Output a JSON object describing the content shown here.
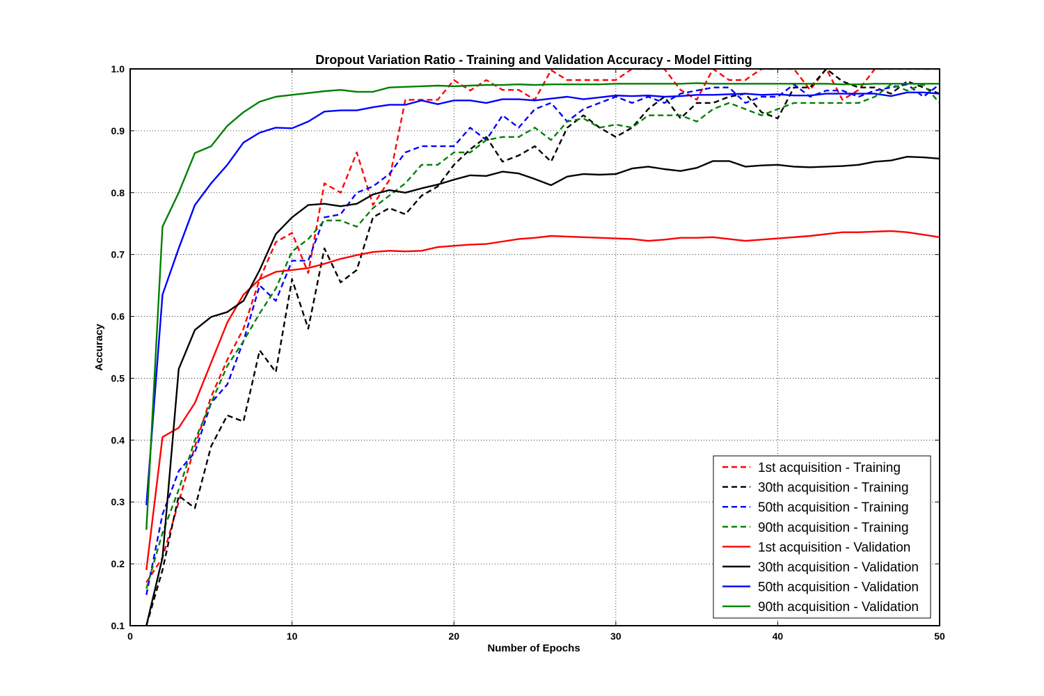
{
  "chart_data": {
    "type": "line",
    "title": "Dropout Variation Ratio - Training and Validation Accuracy - Model Fitting",
    "xlabel": "Number of Epochs",
    "ylabel": "Accuracy",
    "xlim": [
      0,
      50
    ],
    "ylim": [
      0.1,
      1.0
    ],
    "xticks": [
      0,
      10,
      20,
      30,
      40,
      50
    ],
    "xtick_labels": [
      "0",
      "10",
      "20",
      "30",
      "40",
      "50"
    ],
    "yticks": [
      0.1,
      0.2,
      0.3,
      0.4,
      0.5,
      0.6,
      0.7,
      0.8,
      0.9,
      1.0
    ],
    "ytick_labels": [
      "0.1",
      "0.2",
      "0.3",
      "0.4",
      "0.5",
      "0.6",
      "0.7",
      "0.8",
      "0.9",
      "1.0"
    ],
    "grid": true,
    "legend_position": "lower-right",
    "x": [
      1,
      2,
      3,
      4,
      5,
      6,
      7,
      8,
      9,
      10,
      11,
      12,
      13,
      14,
      15,
      16,
      17,
      18,
      19,
      20,
      21,
      22,
      23,
      24,
      25,
      26,
      27,
      28,
      29,
      30,
      31,
      32,
      33,
      34,
      35,
      36,
      37,
      38,
      39,
      40,
      41,
      42,
      43,
      44,
      45,
      46,
      47,
      48,
      49,
      50
    ],
    "series": [
      {
        "name": "1st acquisition - Training",
        "color": "#ff0000",
        "style": "dashed",
        "values": [
          0.17,
          0.21,
          0.3,
          0.39,
          0.47,
          0.53,
          0.58,
          0.66,
          0.72,
          0.735,
          0.67,
          0.815,
          0.8,
          0.865,
          0.78,
          0.82,
          0.95,
          0.95,
          0.95,
          0.982,
          0.965,
          0.982,
          0.966,
          0.966,
          0.95,
          0.998,
          0.982,
          0.982,
          0.982,
          0.982,
          1.0,
          1.0,
          1.0,
          0.966,
          0.95,
          1.0,
          0.982,
          0.982,
          1.0,
          1.0,
          1.0,
          0.966,
          1.0,
          0.95,
          0.966,
          1.0,
          1.0,
          1.0,
          1.0,
          1.0
        ]
      },
      {
        "name": "30th acquisition - Training",
        "color": "#000000",
        "style": "dashed",
        "values": [
          0.1,
          0.19,
          0.31,
          0.29,
          0.39,
          0.44,
          0.43,
          0.545,
          0.51,
          0.66,
          0.58,
          0.71,
          0.655,
          0.675,
          0.76,
          0.775,
          0.765,
          0.795,
          0.81,
          0.845,
          0.87,
          0.89,
          0.85,
          0.86,
          0.875,
          0.85,
          0.905,
          0.925,
          0.905,
          0.89,
          0.905,
          0.935,
          0.955,
          0.92,
          0.945,
          0.945,
          0.955,
          0.96,
          0.93,
          0.92,
          0.97,
          0.97,
          1.0,
          0.98,
          0.97,
          0.97,
          0.96,
          0.98,
          0.97,
          0.96
        ]
      },
      {
        "name": "50th acquisition - Training",
        "color": "#0000ff",
        "style": "dashed",
        "values": [
          0.15,
          0.28,
          0.35,
          0.38,
          0.46,
          0.49,
          0.56,
          0.65,
          0.625,
          0.69,
          0.69,
          0.76,
          0.765,
          0.8,
          0.81,
          0.83,
          0.865,
          0.875,
          0.875,
          0.875,
          0.905,
          0.885,
          0.925,
          0.905,
          0.935,
          0.945,
          0.915,
          0.935,
          0.945,
          0.955,
          0.945,
          0.955,
          0.945,
          0.96,
          0.965,
          0.97,
          0.97,
          0.945,
          0.955,
          0.955,
          0.975,
          0.955,
          0.965,
          0.965,
          0.955,
          0.965,
          0.97,
          0.975,
          0.955,
          0.975
        ]
      },
      {
        "name": "90th acquisition - Training",
        "color": "#008000",
        "style": "dashed",
        "values": [
          0.16,
          0.25,
          0.32,
          0.4,
          0.46,
          0.52,
          0.56,
          0.605,
          0.645,
          0.705,
          0.725,
          0.755,
          0.755,
          0.745,
          0.775,
          0.795,
          0.815,
          0.845,
          0.845,
          0.865,
          0.865,
          0.885,
          0.89,
          0.89,
          0.905,
          0.885,
          0.915,
          0.92,
          0.905,
          0.91,
          0.905,
          0.925,
          0.925,
          0.925,
          0.915,
          0.935,
          0.945,
          0.935,
          0.925,
          0.935,
          0.945,
          0.945,
          0.945,
          0.945,
          0.945,
          0.955,
          0.975,
          0.965,
          0.975,
          0.945
        ]
      },
      {
        "name": "1st acquisition - Validation",
        "color": "#ff0000",
        "style": "solid",
        "values": [
          0.19,
          0.405,
          0.42,
          0.46,
          0.525,
          0.59,
          0.635,
          0.66,
          0.672,
          0.675,
          0.678,
          0.685,
          0.693,
          0.699,
          0.704,
          0.706,
          0.705,
          0.706,
          0.712,
          0.714,
          0.716,
          0.717,
          0.721,
          0.725,
          0.727,
          0.73,
          0.729,
          0.728,
          0.727,
          0.726,
          0.725,
          0.722,
          0.724,
          0.727,
          0.727,
          0.728,
          0.725,
          0.722,
          0.724,
          0.726,
          0.728,
          0.73,
          0.733,
          0.736,
          0.736,
          0.737,
          0.738,
          0.736,
          0.732,
          0.728
        ]
      },
      {
        "name": "30th acquisition - Validation",
        "color": "#000000",
        "style": "solid",
        "values": [
          0.1,
          0.21,
          0.515,
          0.578,
          0.599,
          0.607,
          0.625,
          0.675,
          0.733,
          0.76,
          0.78,
          0.782,
          0.778,
          0.782,
          0.797,
          0.804,
          0.8,
          0.807,
          0.813,
          0.821,
          0.828,
          0.827,
          0.834,
          0.831,
          0.822,
          0.812,
          0.826,
          0.83,
          0.829,
          0.83,
          0.839,
          0.842,
          0.838,
          0.835,
          0.84,
          0.851,
          0.851,
          0.842,
          0.844,
          0.845,
          0.842,
          0.841,
          0.842,
          0.843,
          0.845,
          0.85,
          0.852,
          0.858,
          0.857,
          0.855
        ]
      },
      {
        "name": "50th acquisition - Validation",
        "color": "#0000ff",
        "style": "solid",
        "values": [
          0.295,
          0.635,
          0.71,
          0.78,
          0.815,
          0.845,
          0.881,
          0.897,
          0.905,
          0.904,
          0.915,
          0.931,
          0.933,
          0.933,
          0.938,
          0.942,
          0.942,
          0.949,
          0.943,
          0.949,
          0.949,
          0.945,
          0.951,
          0.951,
          0.949,
          0.952,
          0.955,
          0.951,
          0.954,
          0.957,
          0.956,
          0.957,
          0.955,
          0.956,
          0.958,
          0.958,
          0.959,
          0.96,
          0.958,
          0.959,
          0.957,
          0.957,
          0.96,
          0.96,
          0.96,
          0.96,
          0.956,
          0.962,
          0.962,
          0.96
        ]
      },
      {
        "name": "90th acquisition - Validation",
        "color": "#008000",
        "style": "solid",
        "values": [
          0.255,
          0.745,
          0.8,
          0.864,
          0.875,
          0.908,
          0.93,
          0.947,
          0.955,
          0.958,
          0.961,
          0.964,
          0.966,
          0.963,
          0.963,
          0.97,
          0.971,
          0.972,
          0.973,
          0.972,
          0.973,
          0.974,
          0.974,
          0.975,
          0.974,
          0.975,
          0.975,
          0.975,
          0.975,
          0.976,
          0.976,
          0.976,
          0.976,
          0.976,
          0.977,
          0.976,
          0.976,
          0.976,
          0.976,
          0.976,
          0.976,
          0.976,
          0.976,
          0.975,
          0.975,
          0.976,
          0.976,
          0.976,
          0.976,
          0.976
        ]
      }
    ]
  }
}
